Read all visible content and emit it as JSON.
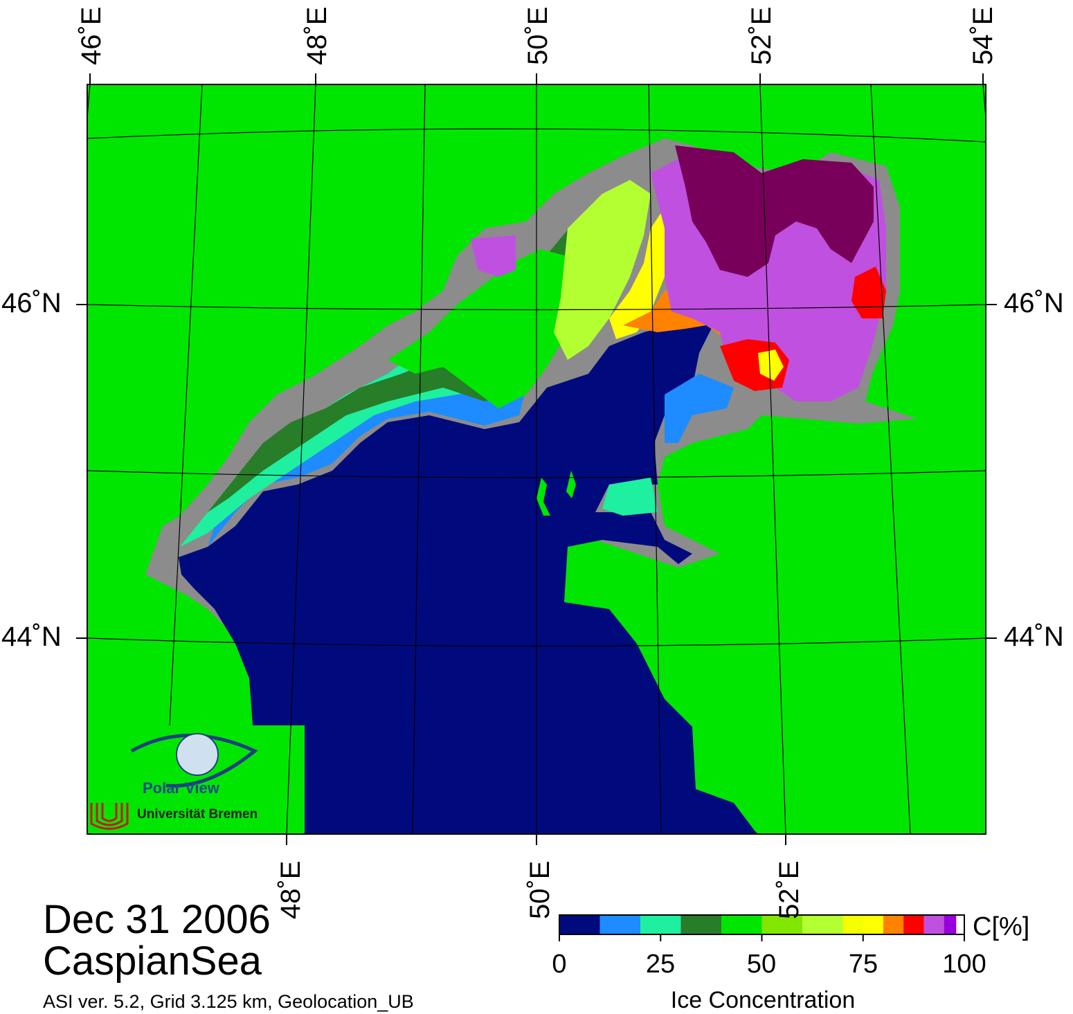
{
  "header": {
    "date": "Dec 31 2006",
    "region": "CaspianSea",
    "product_line": "ASI ver. 5.2,  Grid 3.125 km, Geolocation_UB"
  },
  "graticule": {
    "lon_labels_top": [
      "46˚E",
      "48˚E",
      "50˚E",
      "52˚E",
      "54˚E"
    ],
    "lon_labels_bottom": [
      "48˚E",
      "50˚E",
      "52˚E"
    ],
    "lat_labels_left": [
      "46˚N",
      "44˚N"
    ],
    "lat_labels_right": [
      "46˚N",
      "44˚N"
    ]
  },
  "colorbar": {
    "title": "Ice Concentration",
    "unit": "C[%]",
    "tick_labels": [
      "0",
      "25",
      "50",
      "75",
      "100"
    ],
    "classes": [
      {
        "from": 0,
        "to": 10,
        "color": "#000a7d"
      },
      {
        "from": 10,
        "to": 20,
        "color": "#1e8cff"
      },
      {
        "from": 20,
        "to": 30,
        "color": "#1ef0a0"
      },
      {
        "from": 30,
        "to": 40,
        "color": "#287d28"
      },
      {
        "from": 40,
        "to": 50,
        "color": "#00e600"
      },
      {
        "from": 50,
        "to": 60,
        "color": "#82e600"
      },
      {
        "from": 60,
        "to": 70,
        "color": "#b4ff32"
      },
      {
        "from": 70,
        "to": 75,
        "color": "#f5ff00"
      },
      {
        "from": 75,
        "to": 80,
        "color": "#ffff00"
      },
      {
        "from": 80,
        "to": 85,
        "color": "#ff8200"
      },
      {
        "from": 85,
        "to": 90,
        "color": "#ff0000"
      },
      {
        "from": 90,
        "to": 95,
        "color": "#c050e0"
      },
      {
        "from": 95,
        "to": 98,
        "color": "#9600dc"
      },
      {
        "from": 98,
        "to": 100,
        "color": "#ffffff"
      }
    ]
  },
  "map_colors": {
    "land": "#00e600",
    "coast": "#8c8c8c",
    "open_water": "#000a7d",
    "high_ice": "#78005a"
  },
  "logo": {
    "name": "Polar View",
    "institution": "Universität Bremen"
  }
}
